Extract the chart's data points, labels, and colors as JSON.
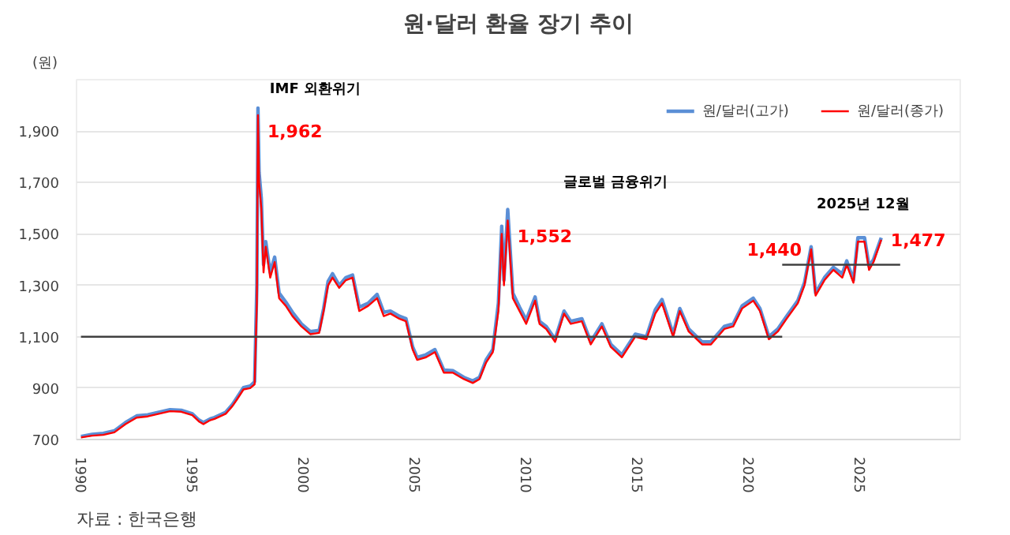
{
  "chart_data": {
    "type": "line",
    "title": "원·달러 환율 장기 추이",
    "ylabel": "(원)",
    "xlim": [
      1989.8,
      2029.5
    ],
    "ylim": [
      700,
      2100
    ],
    "xticks": [
      1990,
      1995,
      2000,
      2005,
      2010,
      2015,
      2020,
      2025
    ],
    "yticks": [
      700,
      900,
      {
        "value": 1100,
        "label": "1,100"
      },
      {
        "value": 1300,
        "label": "1,300"
      },
      {
        "value": 1500,
        "label": "1,500"
      },
      {
        "value": 1700,
        "label": "1,700"
      },
      {
        "value": 1900,
        "label": "1,900"
      }
    ],
    "grid": "y",
    "legend": "top right",
    "marker": "none",
    "line_style": "solid",
    "series": [
      {
        "name": "원/달러(고가)",
        "color": "#5b8fd6",
        "x": [
          1990.0,
          1990.5,
          1991.0,
          1991.5,
          1992.0,
          1992.5,
          1993.0,
          1993.5,
          1994.0,
          1994.5,
          1995.0,
          1995.3,
          1995.5,
          1995.8,
          1996.0,
          1996.5,
          1996.8,
          1997.0,
          1997.3,
          1997.6,
          1997.8,
          1997.9,
          1997.95,
          1998.0,
          1998.1,
          1998.2,
          1998.3,
          1998.5,
          1998.7,
          1998.9,
          1999.2,
          1999.5,
          1999.9,
          2000.3,
          2000.7,
          2000.9,
          2001.1,
          2001.3,
          2001.6,
          2001.9,
          2002.2,
          2002.5,
          2002.9,
          2003.3,
          2003.6,
          2003.9,
          2004.3,
          2004.6,
          2004.9,
          2005.1,
          2005.5,
          2005.9,
          2006.3,
          2006.7,
          2007.2,
          2007.6,
          2007.9,
          2008.2,
          2008.5,
          2008.75,
          2008.9,
          2009.0,
          2009.17,
          2009.4,
          2009.7,
          2010.0,
          2010.4,
          2010.6,
          2010.9,
          2011.3,
          2011.7,
          2012.0,
          2012.5,
          2012.9,
          2013.4,
          2013.8,
          2014.3,
          2014.9,
          2015.4,
          2015.8,
          2016.1,
          2016.6,
          2016.9,
          2017.3,
          2017.9,
          2018.3,
          2018.9,
          2019.3,
          2019.7,
          2020.2,
          2020.5,
          2020.9,
          2021.3,
          2021.7,
          2022.2,
          2022.5,
          2022.8,
          2023.0,
          2023.4,
          2023.8,
          2024.2,
          2024.4,
          2024.7,
          2024.9,
          2025.2,
          2025.4,
          2025.6,
          2025.95
        ],
        "values": [
          712,
          720,
          724,
          734,
          766,
          792,
          796,
          806,
          816,
          814,
          800,
          776,
          766,
          780,
          786,
          806,
          836,
          862,
          902,
          908,
          925,
          1300,
          1990,
          1740,
          1640,
          1380,
          1470,
          1350,
          1410,
          1270,
          1235,
          1195,
          1150,
          1120,
          1125,
          1210,
          1315,
          1345,
          1300,
          1330,
          1340,
          1215,
          1230,
          1265,
          1195,
          1200,
          1180,
          1170,
          1060,
          1020,
          1030,
          1050,
          970,
          968,
          942,
          928,
          942,
          1010,
          1050,
          1230,
          1530,
          1320,
          1595,
          1270,
          1215,
          1165,
          1255,
          1160,
          1140,
          1090,
          1200,
          1160,
          1170,
          1080,
          1150,
          1070,
          1030,
          1110,
          1100,
          1205,
          1245,
          1110,
          1210,
          1130,
          1080,
          1080,
          1140,
          1150,
          1220,
          1250,
          1210,
          1100,
          1130,
          1180,
          1240,
          1310,
          1450,
          1270,
          1330,
          1370,
          1345,
          1395,
          1320,
          1485,
          1485,
          1375,
          1400,
          1485
        ]
      },
      {
        "name": "원/달러(종가)",
        "color": "#ff0000",
        "x": [
          1990.0,
          1990.5,
          1991.0,
          1991.5,
          1992.0,
          1992.5,
          1993.0,
          1993.5,
          1994.0,
          1994.5,
          1995.0,
          1995.3,
          1995.5,
          1995.8,
          1996.0,
          1996.5,
          1996.8,
          1997.0,
          1997.3,
          1997.6,
          1997.8,
          1997.9,
          1997.95,
          1998.0,
          1998.1,
          1998.2,
          1998.3,
          1998.5,
          1998.7,
          1998.9,
          1999.2,
          1999.5,
          1999.9,
          2000.3,
          2000.7,
          2000.9,
          2001.1,
          2001.3,
          2001.6,
          2001.9,
          2002.2,
          2002.5,
          2002.9,
          2003.3,
          2003.6,
          2003.9,
          2004.3,
          2004.6,
          2004.9,
          2005.1,
          2005.5,
          2005.9,
          2006.3,
          2006.7,
          2007.2,
          2007.6,
          2007.9,
          2008.2,
          2008.5,
          2008.75,
          2008.9,
          2009.0,
          2009.17,
          2009.4,
          2009.7,
          2010.0,
          2010.4,
          2010.6,
          2010.9,
          2011.3,
          2011.7,
          2012.0,
          2012.5,
          2012.9,
          2013.4,
          2013.8,
          2014.3,
          2014.9,
          2015.4,
          2015.8,
          2016.1,
          2016.6,
          2016.9,
          2017.3,
          2017.9,
          2018.3,
          2018.9,
          2019.3,
          2019.7,
          2020.2,
          2020.5,
          2020.9,
          2021.3,
          2021.7,
          2022.2,
          2022.5,
          2022.8,
          2023.0,
          2023.4,
          2023.8,
          2024.2,
          2024.4,
          2024.7,
          2024.9,
          2025.2,
          2025.4,
          2025.6,
          2025.95
        ],
        "values": [
          708,
          715,
          718,
          728,
          760,
          785,
          790,
          800,
          810,
          808,
          795,
          770,
          760,
          775,
          780,
          800,
          830,
          855,
          895,
          900,
          915,
          1230,
          1962,
          1700,
          1600,
          1350,
          1450,
          1330,
          1390,
          1250,
          1220,
          1180,
          1140,
          1110,
          1115,
          1200,
          1300,
          1330,
          1290,
          1320,
          1330,
          1200,
          1220,
          1250,
          1180,
          1190,
          1170,
          1160,
          1050,
          1010,
          1020,
          1040,
          960,
          960,
          935,
          920,
          935,
          1000,
          1040,
          1200,
          1500,
          1300,
          1552,
          1250,
          1200,
          1150,
          1240,
          1150,
          1130,
          1080,
          1190,
          1150,
          1160,
          1070,
          1140,
          1060,
          1020,
          1100,
          1090,
          1190,
          1230,
          1100,
          1200,
          1120,
          1070,
          1070,
          1130,
          1140,
          1210,
          1240,
          1200,
          1090,
          1120,
          1170,
          1230,
          1300,
          1440,
          1260,
          1320,
          1360,
          1330,
          1380,
          1310,
          1470,
          1470,
          1360,
          1390,
          1477
        ],
        "value_labels": [
          null,
          null,
          null,
          null,
          null,
          null,
          null,
          null,
          null,
          null,
          null,
          null,
          null,
          null,
          null,
          null,
          null,
          null,
          null,
          null,
          null,
          null,
          "1,962",
          null,
          null,
          null,
          null,
          null,
          null,
          null,
          null,
          null,
          null,
          null,
          null,
          null,
          null,
          null,
          null,
          null,
          null,
          null,
          null,
          null,
          null,
          null,
          null,
          null,
          null,
          null,
          null,
          null,
          null,
          null,
          null,
          null,
          null,
          null,
          null,
          null,
          null,
          null,
          "1,552",
          null,
          null,
          null,
          null,
          null,
          null,
          null,
          null,
          null,
          null,
          null,
          null,
          null,
          null,
          null,
          null,
          null,
          null,
          null,
          null,
          null,
          null,
          null,
          null,
          null,
          null,
          null,
          null,
          null,
          null,
          null,
          null,
          null,
          "1,440",
          null,
          null,
          null,
          null,
          null,
          null,
          null,
          null,
          null,
          null,
          "1,477"
        ]
      },
      {
        "color": "#404040",
        "x": [
          1990.0,
          2021.5
        ],
        "values": [
          1100,
          1100
        ]
      },
      {
        "color": "#404040",
        "x": [
          2021.5,
          2026.8
        ],
        "values": [
          1380,
          1380
        ]
      }
    ],
    "annotations": [
      "IMF 외환위기",
      "글로벌 금융위기",
      "2025년 12월",
      "자료 : 한국은행"
    ]
  }
}
